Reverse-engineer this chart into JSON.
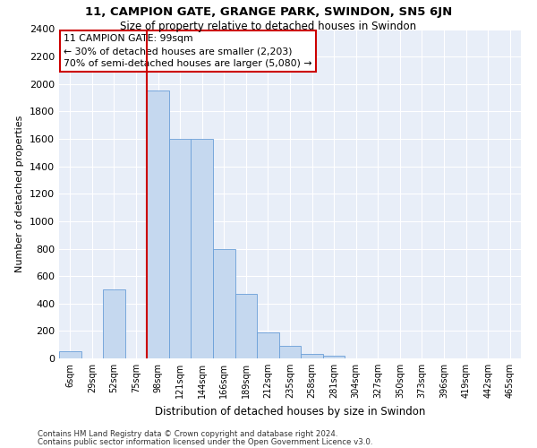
{
  "title1": "11, CAMPION GATE, GRANGE PARK, SWINDON, SN5 6JN",
  "title2": "Size of property relative to detached houses in Swindon",
  "xlabel": "Distribution of detached houses by size in Swindon",
  "ylabel": "Number of detached properties",
  "footnote1": "Contains HM Land Registry data © Crown copyright and database right 2024.",
  "footnote2": "Contains public sector information licensed under the Open Government Licence v3.0.",
  "categories": [
    "6sqm",
    "29sqm",
    "52sqm",
    "75sqm",
    "98sqm",
    "121sqm",
    "144sqm",
    "166sqm",
    "189sqm",
    "212sqm",
    "235sqm",
    "258sqm",
    "281sqm",
    "304sqm",
    "327sqm",
    "350sqm",
    "373sqm",
    "396sqm",
    "419sqm",
    "442sqm",
    "465sqm"
  ],
  "values": [
    50,
    0,
    500,
    0,
    1950,
    1600,
    1600,
    800,
    470,
    190,
    90,
    30,
    20,
    0,
    0,
    0,
    0,
    0,
    0,
    0,
    0
  ],
  "bar_color": "#c5d8ef",
  "bar_edge_color": "#6a9fd8",
  "highlight_index": 4,
  "highlight_color": "#cc0000",
  "annotation_text": "11 CAMPION GATE: 99sqm\n← 30% of detached houses are smaller (2,203)\n70% of semi-detached houses are larger (5,080) →",
  "annotation_box_color": "#ffffff",
  "annotation_box_edge": "#cc0000",
  "ylim": [
    0,
    2400
  ],
  "yticks": [
    0,
    200,
    400,
    600,
    800,
    1000,
    1200,
    1400,
    1600,
    1800,
    2000,
    2200,
    2400
  ],
  "background_color": "#e8eef8",
  "title1_fontsize": 9.5,
  "title2_fontsize": 8.5,
  "xlabel_fontsize": 8.5,
  "ylabel_fontsize": 8
}
